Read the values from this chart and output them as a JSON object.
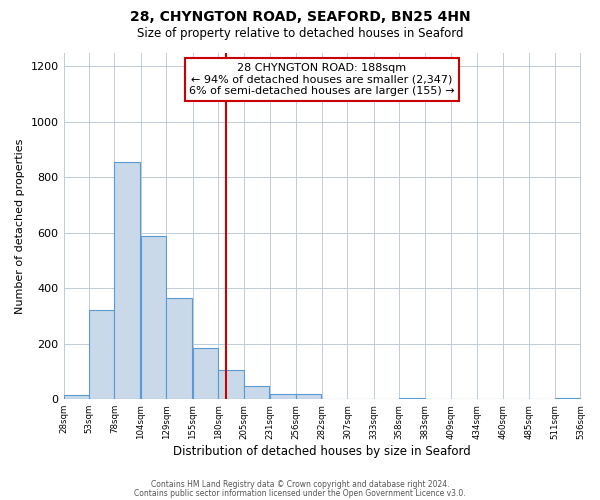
{
  "title": "28, CHYNGTON ROAD, SEAFORD, BN25 4HN",
  "subtitle": "Size of property relative to detached houses in Seaford",
  "xlabel": "Distribution of detached houses by size in Seaford",
  "ylabel": "Number of detached properties",
  "bar_left_edges": [
    28,
    53,
    78,
    104,
    129,
    155,
    180,
    205,
    231,
    256,
    282,
    307,
    333,
    358,
    383,
    409,
    434,
    460,
    485,
    511
  ],
  "bar_heights": [
    15,
    320,
    855,
    590,
    365,
    185,
    105,
    48,
    20,
    18,
    0,
    0,
    0,
    5,
    0,
    0,
    0,
    0,
    0,
    3
  ],
  "bin_width": 25,
  "bar_facecolor": "#c9d9ea",
  "bar_edgecolor": "#5b9bd5",
  "property_line_x": 188,
  "property_line_color": "#cc0000",
  "annotation_line1": "28 CHYNGTON ROAD: 188sqm",
  "annotation_line2": "← 94% of detached houses are smaller (2,347)",
  "annotation_line3": "6% of semi-detached houses are larger (155) →",
  "annotation_box_edgecolor": "#cc0000",
  "annotation_box_facecolor": "#ffffff",
  "ylim": [
    0,
    1250
  ],
  "yticks": [
    0,
    200,
    400,
    600,
    800,
    1000,
    1200
  ],
  "tick_labels": [
    "28sqm",
    "53sqm",
    "78sqm",
    "104sqm",
    "129sqm",
    "155sqm",
    "180sqm",
    "205sqm",
    "231sqm",
    "256sqm",
    "282sqm",
    "307sqm",
    "333sqm",
    "358sqm",
    "383sqm",
    "409sqm",
    "434sqm",
    "460sqm",
    "485sqm",
    "511sqm",
    "536sqm"
  ],
  "background_color": "#ffffff",
  "grid_color": "#c0ccd8",
  "footer_line1": "Contains HM Land Registry data © Crown copyright and database right 2024.",
  "footer_line2": "Contains public sector information licensed under the Open Government Licence v3.0."
}
